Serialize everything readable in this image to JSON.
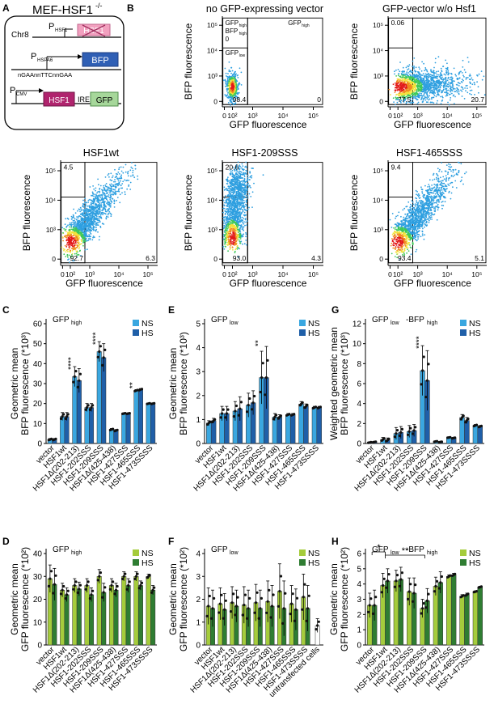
{
  "colors": {
    "ns_blue": "#3aa7e0",
    "hs_blue": "#1f5fa8",
    "ns_green": "#a5cc3c",
    "hs_green": "#2f7d32",
    "bfp_box": "#2f5fb5",
    "hsp_box": "#f2a0bf",
    "hsf1_box": "#b0246e",
    "gfp_box": "#a6d79a"
  },
  "panel_a": {
    "letter": "A",
    "title": "MEF-HSF1",
    "title_sup": "-/-",
    "chr_label": "Chr8",
    "p_hsf1": "P",
    "p_hsf1_sub": "HSF1",
    "hsf1_crossed": "HSF1",
    "p_hspa6": "P",
    "p_hspa6_sub": "HSPA6",
    "bfp": "BFP",
    "motif": "nGAAnnTTCnnGAA",
    "p_cmv": "P",
    "p_cmv_sub": "CMV",
    "hsf1": "HSF1",
    "ires": "IRES",
    "gfp": "GFP"
  },
  "flow": {
    "letter": "B",
    "y_label": "BFP fluorescence",
    "x_label": "GFP fluorescence",
    "y_ticks": [
      "10⁵",
      "10⁴",
      "10³",
      "0"
    ],
    "x_ticks": [
      "0",
      "10²",
      "10³",
      "10⁴",
      "10⁵"
    ],
    "gate_labels": {
      "gfp_high": "GFP",
      "gfp_high_sub": "high",
      "gfp_low": "GFP",
      "gfp_low_sub": "low",
      "bfp_high": "BFP",
      "bfp_high_sub": "high",
      "zero": "0"
    },
    "plots": [
      {
        "title": "no GFP-expressing vector",
        "top": "",
        "low": "98.4",
        "high": "0",
        "density": "tight"
      },
      {
        "title": "GFP-vector w/o Hsf1",
        "top": "0.06",
        "low": "77.5",
        "high": "20.7",
        "density": "wide"
      },
      {
        "title": "HSF1wt",
        "top": "4.5",
        "low": "92.7",
        "high": "6.3",
        "density": "diag"
      },
      {
        "title": "HSF1-209SSS",
        "top": "20.6",
        "low": "93.0",
        "high": "4.3",
        "density": "vertical"
      },
      {
        "title": "HSF1-465SSS",
        "top": "9.4",
        "low": "93.4",
        "high": "5.1",
        "density": "diag"
      }
    ]
  },
  "categories_blue": [
    "vector",
    "HSF1wt",
    "HSF1Δ(202-213)",
    "HSF1-202SSS",
    "HSF1-209SSS",
    "HSF1Δ(425-438)",
    "HSF1-427SSS",
    "HSF1-465SSS",
    "HSF1-473SSSS"
  ],
  "categories_f": [
    "vector",
    "HSF1wt",
    "HSF1Δ(202-213)",
    "HSF1-202SSS",
    "HSF1-209SSS",
    "HSF1Δ(425-438)",
    "HSF1-427SSS",
    "HSF1-465SSS",
    "HSF1-473SSSS",
    "untransfected cells"
  ],
  "chart_data": [
    {
      "id": "C",
      "type": "bar",
      "title": "GFP",
      "title_sub": "high",
      "ylabel_lines": [
        "Geometric mean",
        "BFP fluorescence (*10³)"
      ],
      "ylim": [
        0,
        60
      ],
      "yticks": [
        0,
        10,
        20,
        30,
        40,
        50,
        60
      ],
      "color": "blue",
      "series": [
        {
          "name": "NS",
          "values": [
            2,
            13.5,
            33.5,
            18,
            46,
            7,
            15,
            26.5,
            20
          ]
        },
        {
          "name": "HS",
          "values": [
            2,
            13.5,
            31.5,
            18,
            43,
            6.5,
            15,
            27,
            20
          ]
        }
      ],
      "errors": [
        [
          0.5,
          0.5
        ],
        [
          2,
          2
        ],
        [
          5,
          6
        ],
        [
          2,
          2
        ],
        [
          5,
          7
        ],
        [
          0.5,
          0.5
        ],
        [
          0.3,
          0.3
        ],
        [
          0.5,
          0.5
        ],
        [
          0.3,
          0.3
        ]
      ],
      "annotations": [
        {
          "cat": 2,
          "text": "****"
        },
        {
          "cat": 4,
          "text": "****"
        },
        {
          "cat": 7,
          "text": "**"
        }
      ]
    },
    {
      "id": "E",
      "type": "bar",
      "title": "GFP",
      "title_sub": "low",
      "ylabel_lines": [
        "Geometric mean",
        "BFP fluorescence (*10³)"
      ],
      "ylim": [
        0,
        5
      ],
      "yticks": [
        0,
        1,
        2,
        3,
        4,
        5
      ],
      "color": "blue",
      "series": [
        {
          "name": "NS",
          "values": [
            0.85,
            1.25,
            1.35,
            1.6,
            2.75,
            1.1,
            1.2,
            1.65,
            1.5
          ]
        },
        {
          "name": "HS",
          "values": [
            0.95,
            1.25,
            1.45,
            1.7,
            2.75,
            1.1,
            1.2,
            1.55,
            1.5
          ]
        }
      ],
      "errors": [
        [
          0.1,
          0.1
        ],
        [
          0.3,
          0.3
        ],
        [
          0.4,
          0.5
        ],
        [
          0.5,
          0.5
        ],
        [
          1.1,
          1.3
        ],
        [
          0.15,
          0.1
        ],
        [
          0.05,
          0.05
        ],
        [
          0.1,
          0.1
        ],
        [
          0.05,
          0.05
        ]
      ],
      "annotations": [
        {
          "cat": 4,
          "text": "**"
        }
      ]
    },
    {
      "id": "G",
      "type": "bar",
      "title": "GFP",
      "title_sub": "low",
      "title2": "-BFP",
      "title2_sub": "high",
      "ylabel_lines": [
        "Weighted geometric mean",
        "BFP fluorescence (*10³)"
      ],
      "ylim": [
        0,
        12
      ],
      "yticks": [
        0,
        2,
        4,
        6,
        8,
        10,
        12
      ],
      "color": "blue",
      "series": [
        {
          "name": "NS",
          "values": [
            0.1,
            0.4,
            1.0,
            1.2,
            7.3,
            0.2,
            0.6,
            2.6,
            1.8
          ]
        },
        {
          "name": "HS",
          "values": [
            0.15,
            0.35,
            1.1,
            1.3,
            6.3,
            0.15,
            0.55,
            2.3,
            1.7
          ]
        }
      ],
      "errors": [
        [
          0.05,
          0.05
        ],
        [
          0.2,
          0.2
        ],
        [
          0.6,
          0.6
        ],
        [
          0.6,
          0.6
        ],
        [
          2.5,
          3
        ],
        [
          0.05,
          0.05
        ],
        [
          0.05,
          0.05
        ],
        [
          0.3,
          0.3
        ],
        [
          0.1,
          0.1
        ]
      ],
      "annotations": [
        {
          "cat": 4,
          "text": "****"
        }
      ]
    },
    {
      "id": "D",
      "type": "bar",
      "title": "GFP",
      "title_sub": "high",
      "ylabel_lines": [
        "Geometric mean",
        "GFP fluorescence (*10²)"
      ],
      "ylim": [
        0,
        40
      ],
      "yticks": [
        0,
        10,
        20,
        30,
        40
      ],
      "color": "green",
      "series": [
        {
          "name": "NS",
          "values": [
            29,
            24,
            26,
            26,
            30,
            26,
            30,
            30,
            30
          ]
        },
        {
          "name": "HS",
          "values": [
            26.5,
            22,
            24.5,
            22,
            23,
            24,
            26,
            26,
            24
          ]
        }
      ],
      "errors": [
        [
          6,
          7
        ],
        [
          3,
          3
        ],
        [
          3,
          3
        ],
        [
          3,
          3
        ],
        [
          3,
          4
        ],
        [
          3,
          3
        ],
        [
          2,
          3
        ],
        [
          2,
          2
        ],
        [
          1,
          2
        ]
      ],
      "annotations": []
    },
    {
      "id": "F",
      "type": "bar",
      "title": "GFP",
      "title_sub": "low",
      "ylabel_lines": [
        "Geometric mean",
        "GFP fluorescence (*10²)"
      ],
      "ylim": [
        0,
        4
      ],
      "yticks": [
        0,
        1,
        2,
        3,
        4
      ],
      "color": "green",
      "series": [
        {
          "name": "NS",
          "values": [
            1.7,
            1.8,
            1.85,
            1.75,
            1.85,
            1.9,
            2.35,
            1.8,
            2.1,
            0.85
          ]
        },
        {
          "name": "HS",
          "values": [
            1.6,
            1.55,
            1.7,
            1.6,
            1.6,
            1.7,
            1.6,
            1.55,
            1.6,
            null
          ]
        }
      ],
      "errors": [
        [
          0.8,
          0.8
        ],
        [
          0.7,
          0.7
        ],
        [
          0.7,
          0.7
        ],
        [
          0.8,
          0.8
        ],
        [
          0.8,
          0.8
        ],
        [
          0.9,
          0.9
        ],
        [
          1.2,
          1.2
        ],
        [
          0.8,
          0.9
        ],
        [
          1.0,
          1.0
        ],
        [
          0.3,
          0.3
        ]
      ],
      "annotations": []
    },
    {
      "id": "H",
      "type": "bar",
      "title": "GFP",
      "title_sub": "low",
      "title2": "-BFP",
      "title2_sub": "high",
      "ylabel_lines": [
        "Geometric mean",
        "GFP fluorescence (*10²)"
      ],
      "ylim": [
        0,
        6
      ],
      "yticks": [
        0,
        1,
        2,
        3,
        4,
        5,
        6
      ],
      "color": "green",
      "series": [
        {
          "name": "NS",
          "values": [
            2.6,
            3.9,
            4.2,
            3.5,
            2.4,
            3.85,
            4.5,
            3.2,
            3.5
          ]
        },
        {
          "name": "HS",
          "values": [
            2.6,
            4.2,
            4.3,
            3.4,
            2.9,
            4.1,
            4.6,
            3.3,
            3.8
          ]
        }
      ],
      "errors": [
        [
          0.8,
          1.0
        ],
        [
          0.8,
          0.8
        ],
        [
          0.7,
          0.8
        ],
        [
          0.9,
          1.0
        ],
        [
          0.6,
          0.8
        ],
        [
          0.6,
          0.7
        ],
        [
          0.1,
          0.1
        ],
        [
          0.1,
          0.1
        ],
        [
          0.05,
          0.05
        ]
      ],
      "annotations": [],
      "brackets": [
        {
          "from": 0,
          "to": 1,
          "text": "*"
        },
        {
          "from": 1,
          "to": 4,
          "text": "**"
        }
      ]
    }
  ]
}
